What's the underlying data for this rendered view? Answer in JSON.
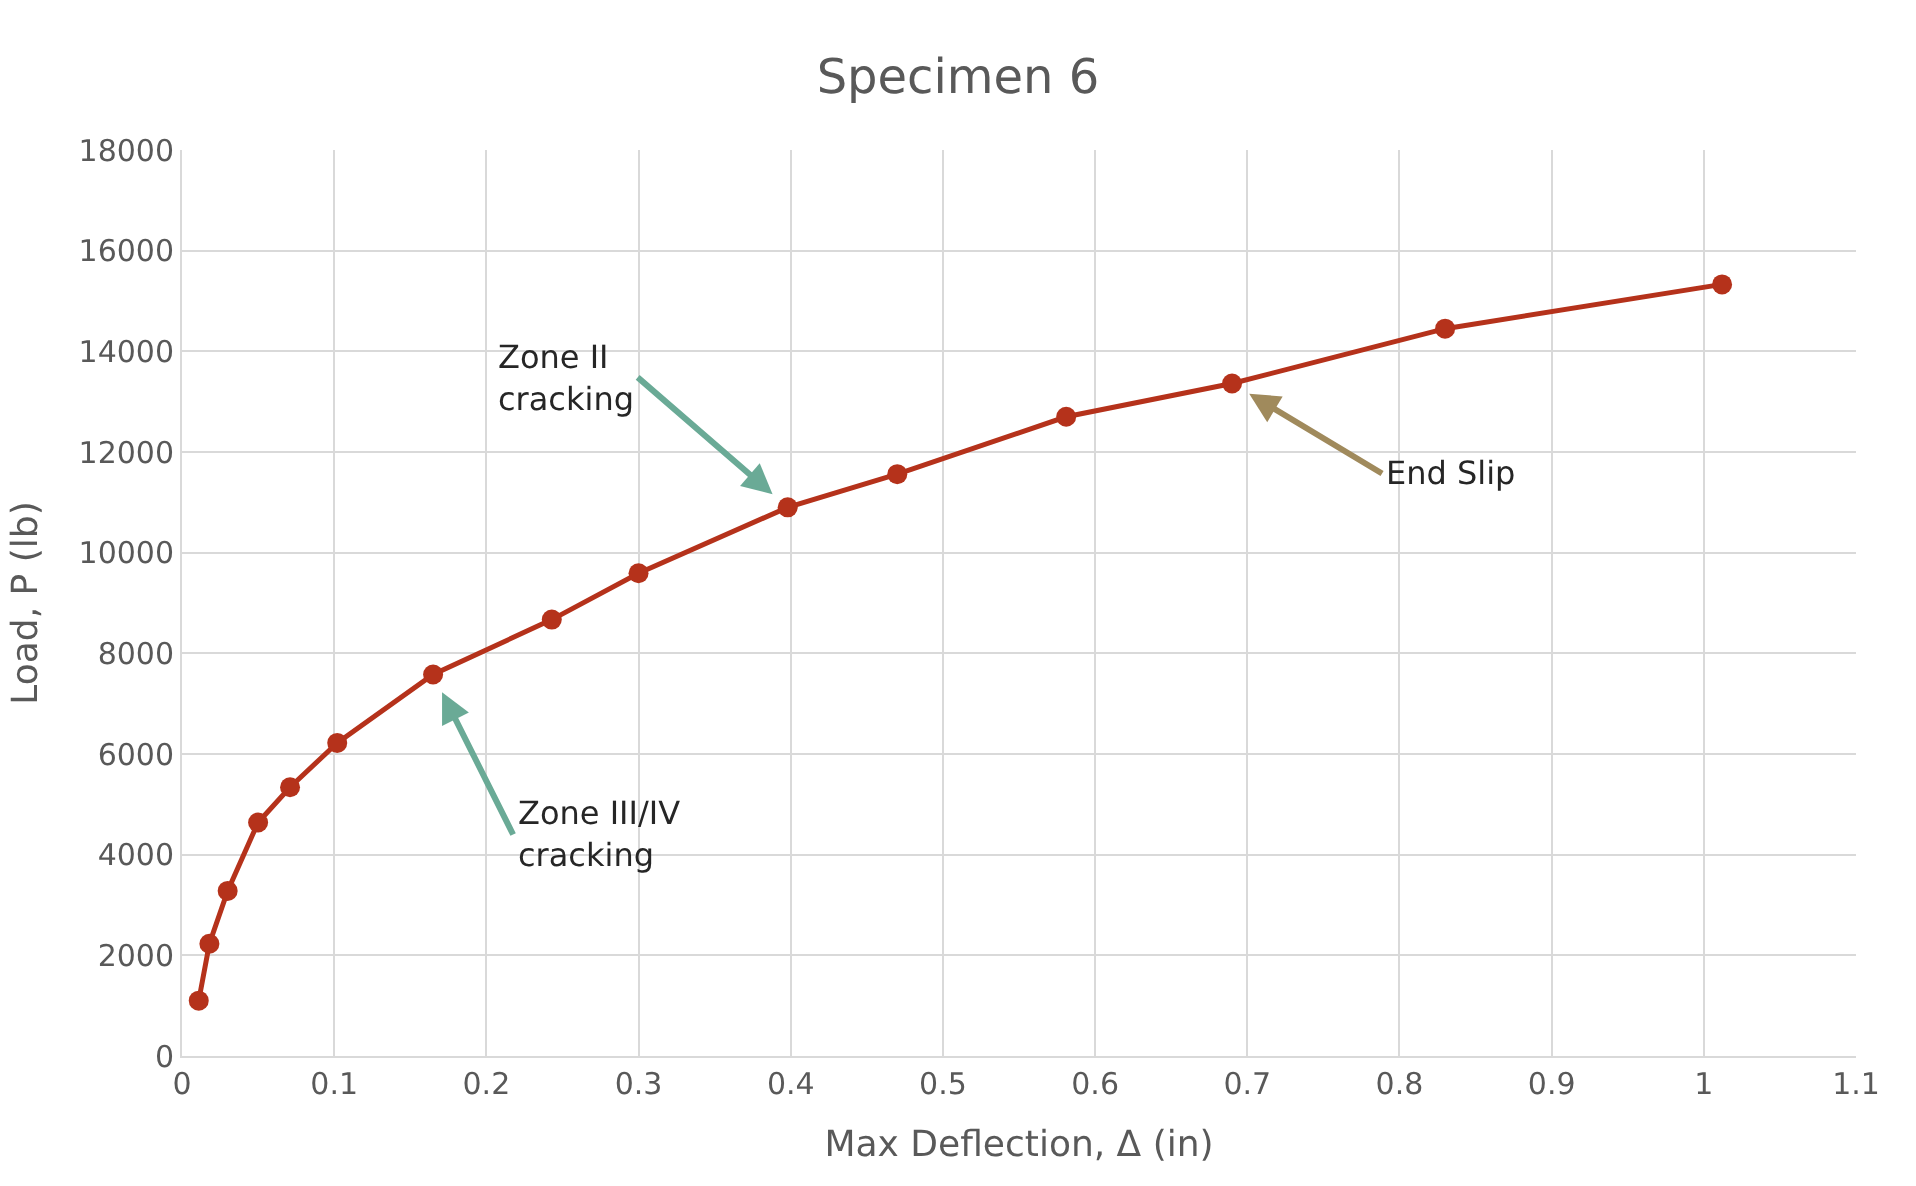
{
  "chart_data": {
    "type": "line",
    "title": "Specimen 6",
    "xlabel": "Max Deflection, Δ (in)",
    "ylabel": "Load, P (lb)",
    "x": [
      0.011,
      0.018,
      0.03,
      0.05,
      0.071,
      0.102,
      0.165,
      0.243,
      0.3,
      0.398,
      0.47,
      0.581,
      0.69,
      0.83,
      1.012
    ],
    "series": [
      {
        "color": "#b5321b",
        "values": [
          1100,
          2230,
          3280,
          4640,
          5340,
          6220,
          7580,
          8670,
          9590,
          10900,
          11560,
          12700,
          13360,
          14450,
          15330
        ]
      }
    ],
    "xlim": [
      0,
      1.1
    ],
    "xticks": [
      0,
      0.1,
      0.2,
      0.3,
      0.4,
      0.5,
      0.6,
      0.7,
      0.8,
      0.9,
      1,
      1.1
    ],
    "ylim": [
      0,
      18000
    ],
    "yticks": [
      0,
      2000,
      4000,
      6000,
      8000,
      10000,
      12000,
      14000,
      16000,
      18000
    ],
    "grid": true,
    "marker": "circle",
    "line_style": "solid",
    "annotations": [
      {
        "text": "Zone II\ncracking",
        "x": 0.398,
        "y": 10900
      },
      {
        "text": "Zone III/IV\ncracking",
        "x": 0.165,
        "y": 7580
      },
      {
        "text": "End Slip",
        "x": 0.69,
        "y": 13360
      }
    ]
  }
}
